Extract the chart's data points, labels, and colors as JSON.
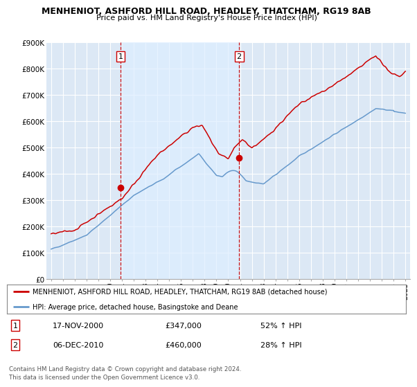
{
  "title": "MENHENIOT, ASHFORD HILL ROAD, HEADLEY, THATCHAM, RG19 8AB",
  "subtitle": "Price paid vs. HM Land Registry's House Price Index (HPI)",
  "background_color": "#ffffff",
  "plot_bg_color": "#dce8f5",
  "grid_color": "#ffffff",
  "highlight_color": "#cce0f0",
  "red_line_color": "#cc0000",
  "blue_line_color": "#6699cc",
  "sale1_x": 2000.88,
  "sale1_y": 347000,
  "sale2_x": 2010.92,
  "sale2_y": 460000,
  "legend_entry1": "MENHENIOT, ASHFORD HILL ROAD, HEADLEY, THATCHAM, RG19 8AB (detached house)",
  "legend_entry2": "HPI: Average price, detached house, Basingstoke and Deane",
  "table_row1": [
    "1",
    "17-NOV-2000",
    "£347,000",
    "52% ↑ HPI"
  ],
  "table_row2": [
    "2",
    "06-DEC-2010",
    "£460,000",
    "28% ↑ HPI"
  ],
  "footer1": "Contains HM Land Registry data © Crown copyright and database right 2024.",
  "footer2": "This data is licensed under the Open Government Licence v3.0.",
  "ylim": [
    0,
    900000
  ],
  "xlim_start": 1994.6,
  "xlim_end": 2025.4,
  "yticks": [
    0,
    100000,
    200000,
    300000,
    400000,
    500000,
    600000,
    700000,
    800000,
    900000
  ],
  "ytick_labels": [
    "£0",
    "£100K",
    "£200K",
    "£300K",
    "£400K",
    "£500K",
    "£600K",
    "£700K",
    "£800K",
    "£900K"
  ],
  "xticks": [
    1995,
    1996,
    1997,
    1998,
    1999,
    2000,
    2001,
    2002,
    2003,
    2004,
    2005,
    2006,
    2007,
    2008,
    2009,
    2010,
    2011,
    2012,
    2013,
    2014,
    2015,
    2016,
    2017,
    2018,
    2019,
    2020,
    2021,
    2022,
    2023,
    2024,
    2025
  ]
}
